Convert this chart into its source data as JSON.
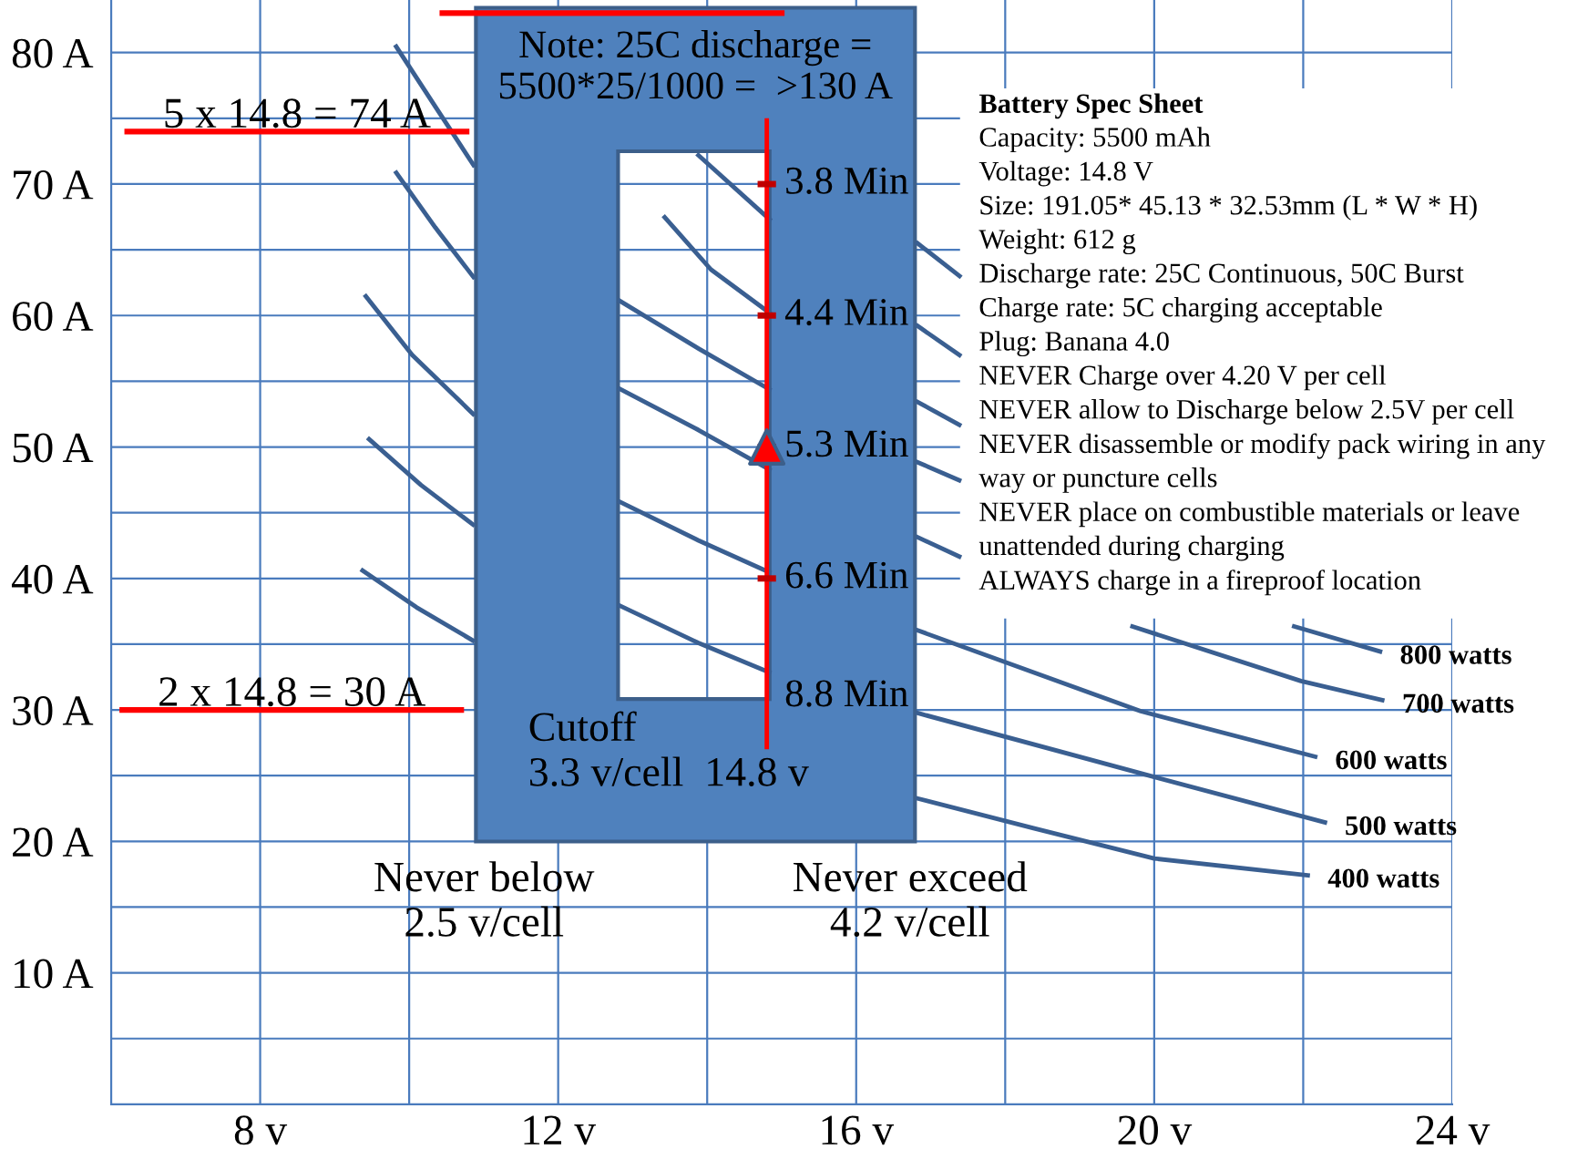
{
  "chart_data": {
    "type": "line",
    "xlim": [
      6,
      24
    ],
    "ylim": [
      0,
      84
    ],
    "xticks": [
      {
        "value": 6,
        "label": null
      },
      {
        "value": 8,
        "label": "8 v"
      },
      {
        "value": 10,
        "label": null
      },
      {
        "value": 12,
        "label": "12 v"
      },
      {
        "value": 14,
        "label": null
      },
      {
        "value": 16,
        "label": "16 v"
      },
      {
        "value": 18,
        "label": null
      },
      {
        "value": 20,
        "label": "20 v"
      },
      {
        "value": 22,
        "label": null
      },
      {
        "value": 24,
        "label": "24 v"
      }
    ],
    "yticks": [
      {
        "value": 5,
        "label": null
      },
      {
        "value": 10,
        "label": "10 A"
      },
      {
        "value": 15,
        "label": null
      },
      {
        "value": 20,
        "label": "20 A"
      },
      {
        "value": 25,
        "label": null
      },
      {
        "value": 30,
        "label": "30 A"
      },
      {
        "value": 35,
        "label": null
      },
      {
        "value": 40,
        "label": "40 A"
      },
      {
        "value": 45,
        "label": null
      },
      {
        "value": 50,
        "label": "50 A"
      },
      {
        "value": 55,
        "label": null
      },
      {
        "value": 60,
        "label": "60 A"
      },
      {
        "value": 65,
        "label": null
      },
      {
        "value": 70,
        "label": "70 A"
      },
      {
        "value": 75,
        "label": null
      },
      {
        "value": 80,
        "label": "80 A"
      }
    ],
    "grid": true,
    "line_style": "solid",
    "series": [
      {
        "name": "800 watts",
        "color": "#3a5f91",
        "x": [
          9.81,
          10.35,
          10.88,
          13,
          21.85,
          23.06
        ],
        "values": [
          80.6,
          75.9,
          71.3,
          null,
          36.4,
          34.4
        ]
      },
      {
        "name": "700 watts",
        "color": "#3a5f91",
        "x": [
          9.81,
          10.35,
          10.88,
          15,
          19.68,
          21.97,
          23.09
        ],
        "values": [
          71.0,
          66.7,
          62.8,
          null,
          36.4,
          32.2,
          30.7
        ]
      },
      {
        "name": "600 watts",
        "color": "#3a5f91",
        "x": [
          9.4,
          10.04,
          10.88,
          13,
          16.8,
          19.82,
          22.19
        ],
        "values": [
          61.6,
          57.0,
          52.4,
          null,
          36.1,
          29.9,
          26.4
        ]
      },
      {
        "name": "500 watts",
        "color": "#3a5f91",
        "x": [
          9.44,
          10.16,
          10.88,
          13,
          16.8,
          20.0,
          22.32
        ],
        "values": [
          50.7,
          47.1,
          44.0,
          null,
          29.8,
          24.9,
          21.4
        ]
      },
      {
        "name": "400 watts",
        "color": "#3a5f91",
        "x": [
          9.35,
          10.1,
          10.88,
          13,
          16.8,
          18.38,
          20.0,
          22.09
        ],
        "values": [
          40.7,
          37.8,
          35.2,
          null,
          23.3,
          21.0,
          18.7,
          17.4
        ]
      },
      {
        "color": "#3a5f91",
        "x": [
          13.86,
          14.86
        ],
        "values": [
          72.3,
          67.2
        ]
      },
      {
        "color": "#3a5f91",
        "x": [
          13.41,
          14.05,
          14.86
        ],
        "values": [
          67.6,
          63.5,
          60.1
        ]
      },
      {
        "color": "#3a5f91",
        "x": [
          12.8,
          13.88,
          14.86
        ],
        "values": [
          61.2,
          57.5,
          54.3
        ]
      },
      {
        "color": "#3a5f91",
        "x": [
          12.8,
          13.88,
          14.86
        ],
        "values": [
          54.5,
          51.3,
          48.2
        ]
      },
      {
        "color": "#3a5f91",
        "x": [
          12.8,
          13.88,
          14.86
        ],
        "values": [
          45.9,
          42.9,
          40.4
        ]
      },
      {
        "color": "#3a5f91",
        "x": [
          12.8,
          13.88,
          14.86
        ],
        "values": [
          38.0,
          35.1,
          32.8
        ]
      },
      {
        "color": "#3a5f91",
        "x": [
          16.8,
          17.41
        ],
        "values": [
          65.6,
          62.9
        ]
      },
      {
        "color": "#3a5f91",
        "x": [
          16.8,
          17.41
        ],
        "values": [
          59.3,
          56.9
        ]
      },
      {
        "color": "#3a5f91",
        "x": [
          16.8,
          17.41
        ],
        "values": [
          53.5,
          51.6
        ]
      },
      {
        "color": "#3a5f91",
        "x": [
          16.8,
          17.41
        ],
        "values": [
          48.9,
          47.4
        ]
      },
      {
        "color": "#3a5f91",
        "x": [
          16.8,
          17.41
        ],
        "values": [
          43.2,
          41.6
        ]
      },
      {
        "color": "#ff0000",
        "x": [
          14.8,
          14.8
        ],
        "values": [
          75,
          27
        ]
      },
      {
        "type": "scatter",
        "marker": "triangle",
        "color": "#ff0000",
        "x": [
          14.8
        ],
        "values": [
          50
        ]
      }
    ],
    "ref_lines": [
      {
        "axis": "y",
        "value": 74,
        "label": "5 x 14.8 = 74 A",
        "color": "#ff0000"
      },
      {
        "axis": "y",
        "value": 30,
        "label": "2 x 14.8 = 30 A",
        "color": "#ff0000"
      },
      {
        "axis": "y",
        "value": 83,
        "label": null,
        "color": "#ff0000"
      }
    ],
    "annotations": [
      "Note: 25C discharge =\n5500*25/1000 =  >130 A",
      "Cutoff\n3.3 v/cell  14.8 v",
      "Never below\n2.5 v/cell",
      "Never exceed\n4.2 v/cell",
      "Battery Spec Sheet",
      "Capacity: 5500 mAh\nVoltage: 14.8 V\nSize: 191.05* 45.13 * 32.53mm (L * W * H)\nWeight: 612 g\nDischarge rate: 25C Continuous, 50C Burst\nCharge rate: 5C charging acceptable\nPlug: Banana 4.0\nNEVER Charge over 4.20 V per cell\nNEVER allow to Discharge below 2.5V per cell\nNEVER disassemble or modify pack wiring in any\nway or puncture cells\nNEVER place on combustible materials or leave\nunattended during charging\nALWAYS charge in a fireproof location",
      "3.8 Min",
      "4.4 Min",
      "5.3 Min",
      "6.6 Min",
      "8.8 Min"
    ]
  }
}
